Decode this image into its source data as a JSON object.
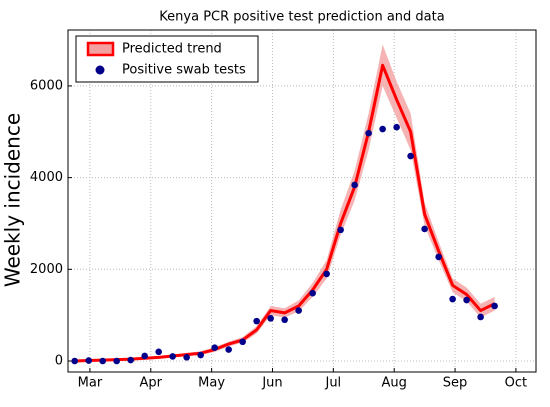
{
  "chart_data": {
    "type": "line",
    "title": "Kenya PCR positive test prediction and data",
    "ylabel": "Weekly incidence",
    "x": [
      2.75,
      2.98,
      3.21,
      3.44,
      3.67,
      3.9,
      4.13,
      4.36,
      4.59,
      4.82,
      5.05,
      5.28,
      5.51,
      5.74,
      5.97,
      6.2,
      6.43,
      6.66,
      6.89,
      7.12,
      7.35,
      7.58,
      7.81,
      8.04,
      8.27,
      8.5,
      8.73,
      8.96,
      9.19,
      9.42,
      9.65
    ],
    "series": [
      {
        "name": "Predicted trend",
        "type": "line",
        "color": "#ff0000",
        "band_color": "#f4a0a0",
        "values": [
          0,
          10,
          20,
          30,
          40,
          60,
          80,
          110,
          140,
          170,
          250,
          370,
          460,
          680,
          1100,
          1050,
          1200,
          1550,
          2000,
          3000,
          3800,
          5000,
          6450,
          5700,
          5000,
          3200,
          2400,
          1650,
          1450,
          1100,
          1250
        ],
        "upper": [
          10,
          20,
          30,
          40,
          60,
          80,
          110,
          140,
          180,
          210,
          300,
          420,
          520,
          760,
          1200,
          1150,
          1320,
          1700,
          2200,
          3300,
          4150,
          5400,
          6900,
          6100,
          5400,
          3450,
          2600,
          1800,
          1600,
          1250,
          1400
        ],
        "lower": [
          0,
          0,
          10,
          20,
          30,
          40,
          60,
          80,
          110,
          130,
          200,
          320,
          400,
          600,
          1000,
          950,
          1080,
          1400,
          1800,
          2750,
          3500,
          4600,
          6000,
          5300,
          4600,
          2950,
          2200,
          1500,
          1300,
          950,
          1100
        ]
      },
      {
        "name": "Positive swab tests",
        "type": "scatter",
        "color": "#00008b",
        "values": [
          0,
          10,
          0,
          0,
          20,
          110,
          200,
          100,
          80,
          130,
          290,
          250,
          420,
          870,
          930,
          900,
          1100,
          1480,
          1900,
          2860,
          3840,
          4970,
          5060,
          5100,
          4470,
          2880,
          2270,
          1350,
          1330,
          960,
          1200
        ]
      }
    ],
    "xlim": [
      2.64,
      10.33
    ],
    "xticks": [
      {
        "value": 3,
        "label": "Mar"
      },
      {
        "value": 4,
        "label": "Apr"
      },
      {
        "value": 5,
        "label": "May"
      },
      {
        "value": 6,
        "label": "Jun"
      },
      {
        "value": 7,
        "label": "Jul"
      },
      {
        "value": 8,
        "label": "Aug"
      },
      {
        "value": 9,
        "label": "Sep"
      },
      {
        "value": 10,
        "label": "Oct"
      }
    ],
    "ylim": [
      -240,
      7220
    ],
    "yticks": [
      0,
      2000,
      4000,
      6000
    ],
    "grid": true,
    "legend": "upper left"
  }
}
